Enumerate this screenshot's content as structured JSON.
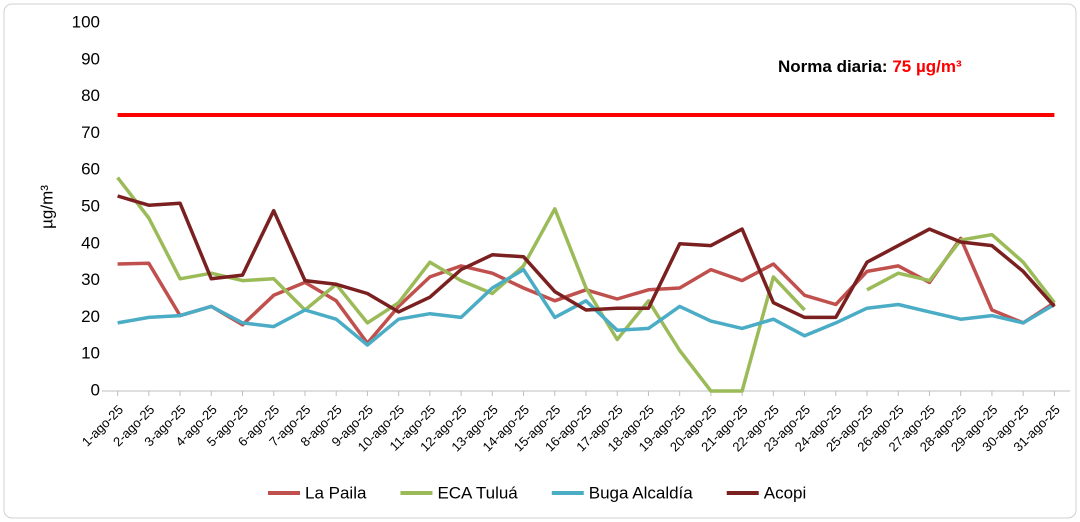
{
  "chart_data": {
    "type": "line",
    "y_label": "µg/m³",
    "annotation": {
      "text": "Norma diaria: ",
      "value_text": "75 µg/m³"
    },
    "threshold": 75,
    "threshold_color": "#ff0000",
    "categories": [
      "1-ago-25",
      "2-ago-25",
      "3-ago-25",
      "4-ago-25",
      "5-ago-25",
      "6-ago-25",
      "7-ago-25",
      "8-ago-25",
      "9-ago-25",
      "10-ago-25",
      "11-ago-25",
      "12-ago-25",
      "13-ago-25",
      "14-ago-25",
      "15-ago-25",
      "16-ago-25",
      "17-ago-25",
      "18-ago-25",
      "19-ago-25",
      "20-ago-25",
      "21-ago-25",
      "22-ago-25",
      "23-ago-25",
      "24-ago-25",
      "25-ago-25",
      "26-ago-25",
      "27-ago-25",
      "28-ago-25",
      "29-ago-25",
      "30-ago-25",
      "31-ago-25"
    ],
    "series": [
      {
        "name": "La Paila",
        "color": "#c0504d",
        "values": [
          34.5,
          34.7,
          20.5,
          23,
          18,
          26,
          29.5,
          24.5,
          13,
          23,
          31,
          34,
          32,
          28,
          24.5,
          27.5,
          25,
          27.5,
          28,
          33,
          30,
          34.5,
          26,
          23.5,
          32.5,
          34,
          29.5,
          41.5,
          22,
          18.5,
          24
        ]
      },
      {
        "name": "ECA Tuluá",
        "color": "#9bbb59",
        "values": [
          58,
          47,
          30.5,
          32,
          30,
          30.5,
          22,
          29,
          18.5,
          24,
          35,
          30,
          26.5,
          34,
          49.5,
          28,
          14,
          24.5,
          11,
          0,
          0,
          31,
          22,
          null,
          27.5,
          32,
          30,
          41,
          42.5,
          35,
          24
        ]
      },
      {
        "name": "Buga Alcaldía",
        "color": "#4bacc6",
        "values": [
          18.5,
          20,
          20.5,
          23,
          18.5,
          17.5,
          22,
          19.5,
          12.5,
          19.5,
          21,
          20,
          28,
          33,
          20,
          24.5,
          16.5,
          17,
          23,
          19,
          17,
          19.5,
          15,
          18.5,
          22.5,
          23.5,
          21.5,
          19.5,
          20.5,
          18.5,
          23.5
        ]
      },
      {
        "name": "Acopi",
        "color": "#7b2020",
        "values": [
          53,
          50.5,
          51,
          30.5,
          31.5,
          49,
          30,
          29,
          26.5,
          21.5,
          25.5,
          33,
          37,
          36.5,
          27,
          22,
          22.5,
          22.5,
          40,
          39.5,
          44,
          24,
          20,
          20,
          35,
          39.5,
          44,
          40.5,
          39.5,
          32.5,
          23
        ]
      }
    ],
    "ylim": [
      0,
      100
    ],
    "yticks": [
      0,
      10,
      20,
      30,
      40,
      50,
      60,
      70,
      80,
      90,
      100
    ],
    "grid": false,
    "legend": "bottom"
  }
}
